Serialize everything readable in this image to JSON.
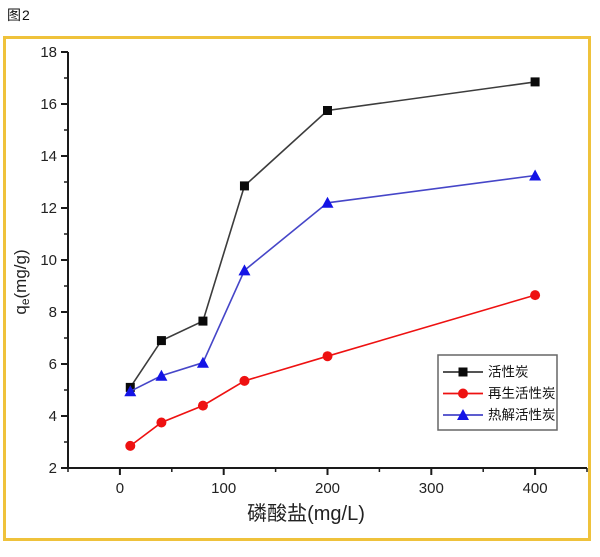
{
  "figure_label": "图2",
  "frame": {
    "border_color": "#efc23b"
  },
  "chart_data": {
    "type": "line",
    "title": "",
    "xlabel": "磷酸盐(mg/L)",
    "ylabel": {
      "prefix": "q",
      "sub": "e",
      "suffix": "(mg/g)"
    },
    "xlim": [
      -50,
      450
    ],
    "ylim": [
      2,
      18
    ],
    "grid": false,
    "legend_position": "right-center",
    "x_major_tick_values": [
      0,
      100,
      200,
      300,
      400
    ],
    "x_major_tick_labels": [
      "0",
      "100",
      "200",
      "300",
      "400"
    ],
    "x_minor_tick_values": [
      -50,
      50,
      150,
      250,
      350,
      450
    ],
    "y_major_tick_values": [
      2,
      4,
      6,
      8,
      10,
      12,
      14,
      16,
      18
    ],
    "y_major_tick_labels": [
      "2",
      "4",
      "6",
      "8",
      "10",
      "12",
      "14",
      "16",
      "18"
    ],
    "y_minor_tick_values": [
      3,
      5,
      7,
      9,
      11,
      13,
      15,
      17
    ],
    "x": [
      10,
      40,
      80,
      120,
      200,
      400
    ],
    "series": [
      {
        "name": "活性炭",
        "marker": "square",
        "line_color": "#3c3c3c",
        "marker_color": "#0a0a0a",
        "values": [
          5.1,
          6.9,
          7.65,
          12.85,
          15.75,
          16.85
        ]
      },
      {
        "name": "再生活性炭",
        "marker": "circle",
        "line_color": "#ee1111",
        "marker_color": "#ee1111",
        "values": [
          2.85,
          3.75,
          4.4,
          5.35,
          6.3,
          8.65
        ]
      },
      {
        "name": "热解活性炭",
        "marker": "triangle",
        "line_color": "#4646c8",
        "marker_color": "#1414e6",
        "values": [
          4.95,
          5.55,
          6.05,
          9.6,
          12.2,
          13.25
        ]
      }
    ],
    "axis_color": "#1a1a1a",
    "legend_border_color": "#666666",
    "text_color": "#222222"
  }
}
